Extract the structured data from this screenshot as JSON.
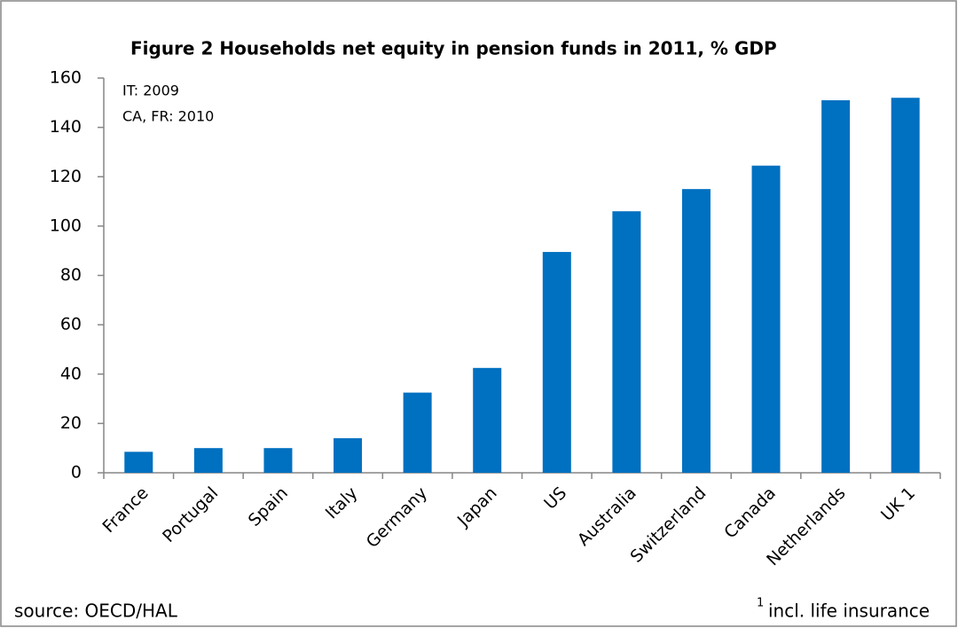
{
  "chart_data": {
    "type": "bar",
    "title": "Figure 2 Households net equity in pension funds in 2011, % GDP",
    "annotations": [
      "IT: 2009",
      "CA, FR: 2010"
    ],
    "source": "source: OECD/HAL",
    "footnote_marker": "1",
    "footnote": "incl. life insurance",
    "categories": [
      "France",
      "Portugal",
      "Spain",
      "Italy",
      "Germany",
      "Japan",
      "US",
      "Australia",
      "Switzerland",
      "Canada",
      "Netherlands",
      "UK 1"
    ],
    "values": [
      8.5,
      10,
      10,
      14,
      32.5,
      42.5,
      89.5,
      106,
      115,
      124.5,
      151,
      152
    ],
    "color": "#0070c0",
    "ylim": [
      0,
      160
    ],
    "yticks": [
      0,
      20,
      40,
      60,
      80,
      100,
      120,
      140,
      160
    ],
    "grid": false
  }
}
